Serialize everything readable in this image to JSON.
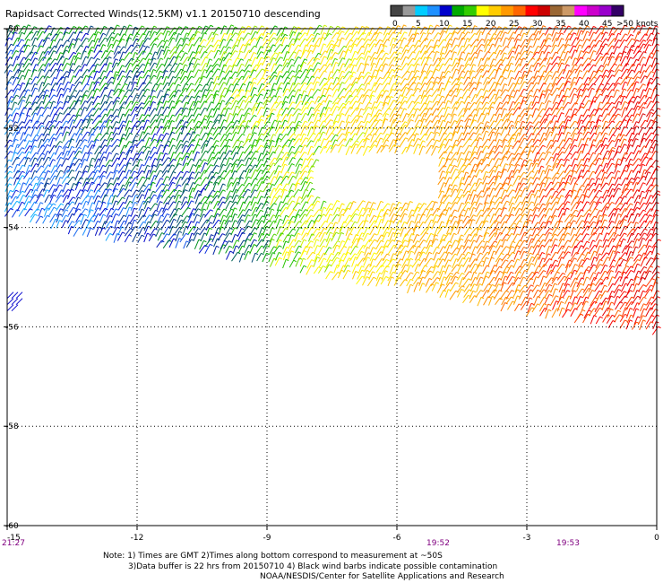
{
  "title": "Rapidsact Corrected Winds(12.5KM) v1.1 20150710 descending",
  "legend": {
    "units_label": ">50 knots",
    "tick_labels": [
      "0",
      "5",
      "10",
      "15",
      "20",
      "25",
      "30",
      "35",
      "40",
      "45"
    ],
    "colors": [
      "#444444",
      "#999999",
      "#00ccff",
      "#1e90ff",
      "#0000cc",
      "#00aa00",
      "#33cc00",
      "#ffff00",
      "#ffcc00",
      "#ff9900",
      "#ff6600",
      "#ff0000",
      "#cc0000",
      "#996633",
      "#cc9966",
      "#ff00ff",
      "#cc00cc",
      "#9900cc",
      "#330066"
    ]
  },
  "colors": {
    "frame": "#000000",
    "grid": "#000000",
    "time_label": "#800080",
    "background": "#ffffff"
  },
  "chart_data": {
    "type": "wind-barbs",
    "x_axis": {
      "range": [
        -15,
        0
      ],
      "ticks": [
        -15,
        -12,
        -9,
        -6,
        -3,
        0
      ],
      "tick_labels": [
        "-15",
        "-12",
        "-9",
        "-6",
        "-3",
        "0"
      ]
    },
    "y_axis": {
      "range": [
        -60,
        -50
      ],
      "ticks": [
        -50,
        -52,
        -54,
        -56,
        -58,
        -60
      ],
      "tick_labels": [
        "-50",
        "-52",
        "-54",
        "-56",
        "-58",
        "-60"
      ]
    },
    "grid": true,
    "time_labels": [
      {
        "lon": -15,
        "text": "21:27"
      },
      {
        "lon": -6,
        "text": "19:52"
      },
      {
        "lon": -3,
        "text": "19:53"
      }
    ],
    "swath_lower_edge": [
      {
        "lon": -15,
        "lat": -53.7
      },
      {
        "lon": -13.5,
        "lat": -54.1
      },
      {
        "lon": -12,
        "lat": -54.3
      },
      {
        "lon": -10.5,
        "lat": -54.5
      },
      {
        "lon": -9,
        "lat": -54.7
      },
      {
        "lon": -7.5,
        "lat": -55.0
      },
      {
        "lon": -6,
        "lat": -55.2
      },
      {
        "lon": -4.5,
        "lat": -55.45
      },
      {
        "lon": -3,
        "lat": -55.7
      },
      {
        "lon": -1.5,
        "lat": -55.9
      },
      {
        "lon": 0,
        "lat": -56.1
      }
    ],
    "wind_speed_by_longitude": [
      {
        "lon": -15,
        "knots": 10
      },
      {
        "lon": -12,
        "knots": 13
      },
      {
        "lon": -10,
        "knots": 16
      },
      {
        "lon": -8,
        "knots": 20
      },
      {
        "lon": -6,
        "knots": 24
      },
      {
        "lon": -4,
        "knots": 28
      },
      {
        "lon": -2,
        "knots": 32
      },
      {
        "lon": 0,
        "knots": 35
      }
    ],
    "gaps": [
      {
        "lon": [
          -7.9,
          -5.1
        ],
        "lat": [
          -52.5,
          -53.5
        ]
      }
    ],
    "isolated_patch": {
      "lon": -15,
      "lat": -55.5
    }
  },
  "notes": [
    "Note: 1) Times are GMT 2)Times along bottom correspond to measurement at ~50S",
    "3)Data buffer is 22 hrs from 20150710 4) Black wind barbs indicate possible contamination",
    "NOAA/NESDIS/Center for Satellite Applications and Research"
  ]
}
